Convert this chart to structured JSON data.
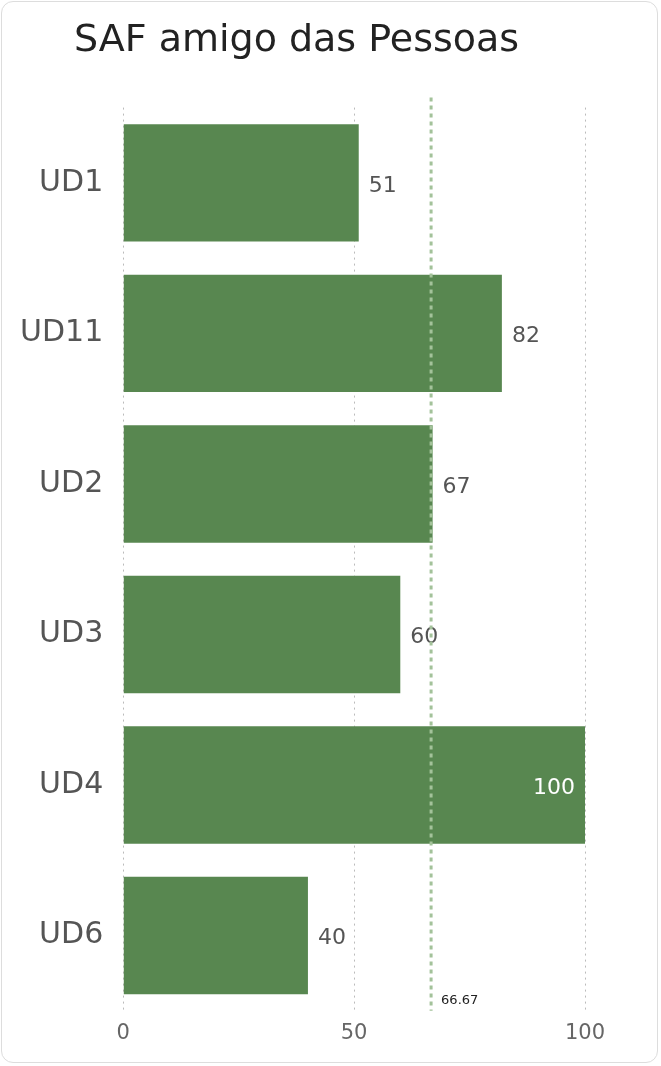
{
  "chart_data": {
    "type": "bar",
    "orientation": "horizontal",
    "title": "SAF amigo das Pessoas",
    "categories": [
      "UD1",
      "UD11",
      "UD2",
      "UD3",
      "UD4",
      "UD6"
    ],
    "values": [
      51,
      82,
      67,
      60,
      100,
      40
    ],
    "color": "#588750",
    "xlim": [
      0,
      100
    ],
    "xticks": [
      0,
      50,
      100
    ],
    "grid": "x",
    "data_labels": true,
    "legend": false,
    "ref_lines": [
      {
        "axis": "x",
        "value": 66.67,
        "label": "66.67",
        "color": "#a3c29a",
        "line_style": "dashed"
      }
    ]
  }
}
